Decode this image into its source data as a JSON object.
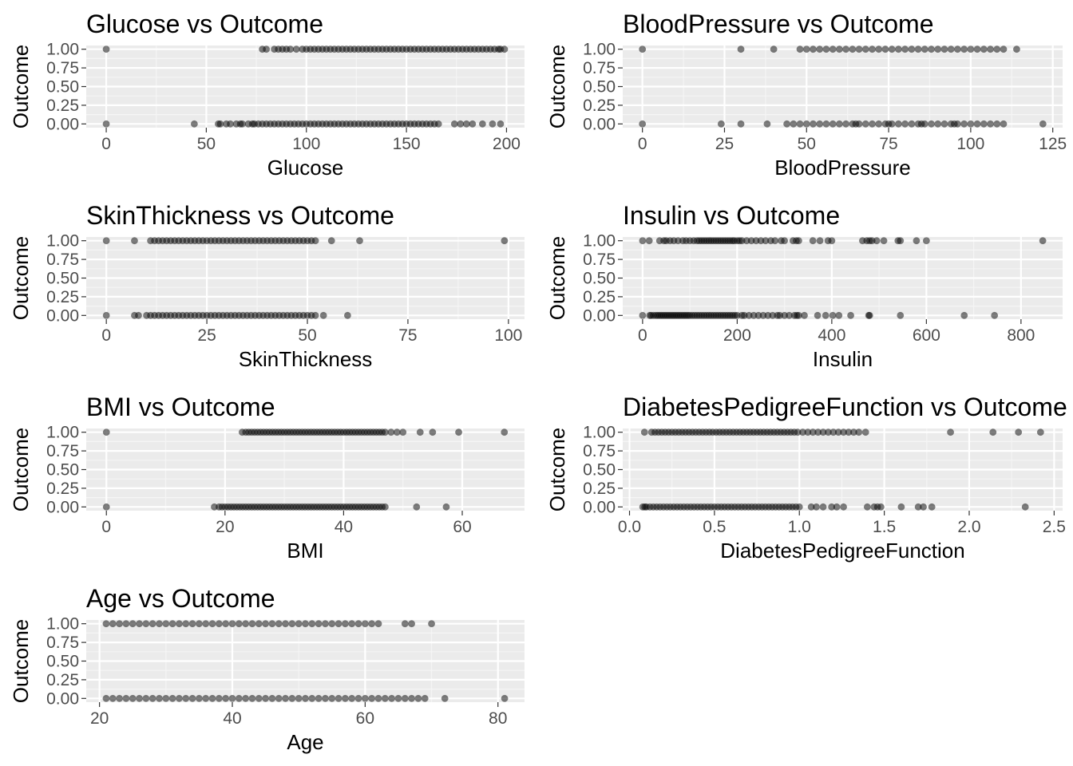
{
  "chart_data": [
    {
      "type": "scatter",
      "title": "Glucose vs Outcome",
      "xlabel": "Glucose",
      "ylabel": "Outcome",
      "xlim": [
        -10,
        209
      ],
      "ylim": [
        -0.05,
        1.05
      ],
      "xticks": [
        0,
        50,
        100,
        150,
        200
      ],
      "xtick_labels": [
        "0",
        "50",
        "100",
        "150",
        "200"
      ],
      "yticks": [
        0,
        0.25,
        0.5,
        0.75,
        1
      ],
      "ytick_labels": [
        "0.00",
        "0.25",
        "0.50",
        "0.75",
        "1.00"
      ],
      "grid": true,
      "series": [
        {
          "y": 1,
          "x": [
            0,
            78,
            80,
            84,
            86,
            88,
            90,
            92,
            95,
            98,
            100,
            102,
            104,
            106,
            108,
            110,
            112,
            114,
            116,
            118,
            120,
            122,
            124,
            126,
            128,
            130,
            132,
            134,
            136,
            138,
            140,
            142,
            144,
            146,
            148,
            150,
            152,
            154,
            156,
            158,
            160,
            162,
            164,
            166,
            168,
            170,
            172,
            174,
            176,
            178,
            180,
            182,
            184,
            186,
            188,
            190,
            192,
            194,
            196,
            197,
            199
          ]
        },
        {
          "y": 0,
          "x": [
            0,
            44,
            56,
            57,
            60,
            62,
            65,
            67,
            68,
            71,
            73,
            74,
            76,
            78,
            80,
            82,
            84,
            86,
            88,
            90,
            92,
            94,
            96,
            98,
            100,
            102,
            104,
            106,
            108,
            110,
            112,
            114,
            116,
            118,
            120,
            122,
            124,
            126,
            128,
            130,
            132,
            134,
            136,
            138,
            140,
            142,
            144,
            146,
            148,
            150,
            152,
            154,
            156,
            158,
            160,
            162,
            164,
            166,
            174,
            177,
            180,
            183,
            188,
            193,
            197
          ]
        }
      ]
    },
    {
      "type": "scatter",
      "title": "BloodPressure vs Outcome",
      "xlabel": "BloodPressure",
      "ylabel": "Outcome",
      "xlim": [
        -6,
        128
      ],
      "ylim": [
        -0.05,
        1.05
      ],
      "xticks": [
        0,
        25,
        50,
        75,
        100,
        125
      ],
      "xtick_labels": [
        "0",
        "25",
        "50",
        "75",
        "100",
        "125"
      ],
      "yticks": [
        0,
        0.25,
        0.5,
        0.75,
        1
      ],
      "ytick_labels": [
        "0.00",
        "0.25",
        "0.50",
        "0.75",
        "1.00"
      ],
      "grid": true,
      "series": [
        {
          "y": 1,
          "x": [
            0,
            30,
            40,
            48,
            50,
            52,
            54,
            56,
            58,
            60,
            62,
            64,
            66,
            68,
            70,
            72,
            74,
            76,
            78,
            80,
            82,
            84,
            86,
            88,
            90,
            92,
            94,
            96,
            98,
            100,
            102,
            104,
            106,
            108,
            110,
            114
          ]
        },
        {
          "y": 0,
          "x": [
            0,
            24,
            30,
            38,
            44,
            46,
            48,
            50,
            52,
            54,
            56,
            58,
            60,
            62,
            64,
            65,
            66,
            68,
            70,
            72,
            74,
            75,
            76,
            78,
            80,
            82,
            84,
            85,
            86,
            88,
            90,
            92,
            94,
            95,
            96,
            98,
            100,
            102,
            104,
            106,
            108,
            110,
            122
          ]
        }
      ]
    },
    {
      "type": "scatter",
      "title": "SkinThickness vs Outcome",
      "xlabel": "SkinThickness",
      "ylabel": "Outcome",
      "xlim": [
        -5,
        104
      ],
      "ylim": [
        -0.05,
        1.05
      ],
      "xticks": [
        0,
        25,
        50,
        75,
        100
      ],
      "xtick_labels": [
        "0",
        "25",
        "50",
        "75",
        "100"
      ],
      "yticks": [
        0,
        0.25,
        0.5,
        0.75,
        1
      ],
      "ytick_labels": [
        "0.00",
        "0.25",
        "0.50",
        "0.75",
        "1.00"
      ],
      "grid": true,
      "series": [
        {
          "y": 1,
          "x": [
            0,
            7,
            11,
            12,
            13,
            14,
            15,
            16,
            17,
            18,
            19,
            20,
            21,
            22,
            23,
            24,
            25,
            26,
            27,
            28,
            29,
            30,
            31,
            32,
            33,
            34,
            35,
            36,
            37,
            38,
            39,
            40,
            41,
            42,
            43,
            44,
            45,
            46,
            47,
            48,
            49,
            50,
            51,
            52,
            56,
            63,
            99
          ]
        },
        {
          "y": 0,
          "x": [
            0,
            7,
            8,
            10,
            11,
            12,
            13,
            14,
            15,
            16,
            17,
            18,
            19,
            20,
            21,
            22,
            23,
            24,
            25,
            26,
            27,
            28,
            29,
            30,
            31,
            32,
            33,
            34,
            35,
            36,
            37,
            38,
            39,
            40,
            41,
            42,
            43,
            44,
            45,
            46,
            47,
            48,
            49,
            50,
            51,
            52,
            54,
            60
          ]
        }
      ]
    },
    {
      "type": "scatter",
      "title": "Insulin vs Outcome",
      "xlabel": "Insulin",
      "ylabel": "Outcome",
      "xlim": [
        -42,
        888
      ],
      "ylim": [
        -0.05,
        1.05
      ],
      "xticks": [
        0,
        200,
        400,
        600,
        800
      ],
      "xtick_labels": [
        "0",
        "200",
        "400",
        "600",
        "800"
      ],
      "yticks": [
        0,
        0.25,
        0.5,
        0.75,
        1
      ],
      "ytick_labels": [
        "0.00",
        "0.25",
        "0.50",
        "0.75",
        "1.00"
      ],
      "grid": true,
      "series": [
        {
          "y": 1,
          "x": [
            0,
            14,
            36,
            45,
            50,
            58,
            66,
            75,
            85,
            92,
            100,
            108,
            115,
            120,
            125,
            130,
            135,
            140,
            145,
            150,
            155,
            160,
            165,
            170,
            175,
            180,
            185,
            190,
            194,
            200,
            205,
            210,
            220,
            230,
            240,
            250,
            260,
            271,
            280,
            293,
            300,
            318,
            325,
            330,
            360,
            375,
            392,
            400,
            465,
            474,
            480,
            485,
            495,
            510,
            540,
            545,
            579,
            600,
            846
          ]
        },
        {
          "y": 0,
          "x": [
            0,
            15,
            18,
            23,
            28,
            32,
            36,
            40,
            44,
            48,
            52,
            56,
            60,
            64,
            68,
            72,
            76,
            80,
            84,
            88,
            92,
            96,
            100,
            105,
            110,
            115,
            120,
            125,
            130,
            135,
            140,
            145,
            150,
            155,
            160,
            165,
            170,
            175,
            180,
            185,
            190,
            195,
            200,
            210,
            215,
            225,
            235,
            245,
            255,
            265,
            275,
            285,
            290,
            300,
            310,
            321,
            326,
            330,
            342,
            370,
            387,
            402,
            415,
            440,
            478,
            480,
            545,
            680,
            744
          ]
        }
      ]
    },
    {
      "type": "scatter",
      "title": "BMI vs Outcome",
      "xlabel": "BMI",
      "ylabel": "Outcome",
      "xlim": [
        -3.4,
        70.5
      ],
      "ylim": [
        -0.05,
        1.05
      ],
      "xticks": [
        0,
        20,
        40,
        60
      ],
      "xtick_labels": [
        "0",
        "20",
        "40",
        "60"
      ],
      "yticks": [
        0,
        0.25,
        0.5,
        0.75,
        1
      ],
      "ytick_labels": [
        "0.00",
        "0.25",
        "0.50",
        "0.75",
        "1.00"
      ],
      "grid": true,
      "series": [
        {
          "y": 1,
          "x": [
            0,
            22.9,
            23.5,
            24.0,
            24.5,
            25.0,
            25.5,
            26.0,
            26.5,
            27.0,
            27.5,
            28.0,
            28.5,
            29.0,
            29.5,
            30.0,
            30.5,
            31.0,
            31.5,
            32.0,
            32.5,
            33.0,
            33.5,
            34.0,
            34.5,
            35.0,
            35.5,
            36.0,
            36.5,
            37.0,
            37.5,
            38.0,
            38.5,
            39.0,
            39.5,
            40.0,
            40.5,
            41.0,
            41.5,
            42.0,
            42.5,
            43.0,
            43.5,
            44.0,
            44.5,
            45.0,
            45.5,
            46.0,
            46.5,
            47.0,
            48.0,
            49.0,
            50.0,
            52.9,
            55.0,
            59.4,
            67.1
          ]
        },
        {
          "y": 0,
          "x": [
            0,
            18.2,
            19.0,
            19.5,
            20.0,
            20.5,
            21.0,
            21.5,
            22.0,
            22.5,
            23.0,
            23.5,
            24.0,
            24.5,
            25.0,
            25.5,
            26.0,
            26.5,
            27.0,
            27.5,
            28.0,
            28.5,
            29.0,
            29.5,
            30.0,
            30.5,
            31.0,
            31.5,
            32.0,
            32.5,
            33.0,
            33.5,
            34.0,
            34.5,
            35.0,
            35.5,
            36.0,
            36.5,
            37.0,
            37.5,
            38.0,
            38.5,
            39.0,
            39.5,
            40.0,
            40.5,
            41.0,
            41.5,
            42.0,
            42.5,
            43.0,
            43.5,
            44.0,
            44.5,
            45.0,
            45.5,
            46.0,
            46.5,
            47.0,
            52.3,
            57.3
          ]
        }
      ]
    },
    {
      "type": "scatter",
      "title": "DiabetesPedigreeFunction vs Outcome",
      "xlabel": "DiabetesPedigreeFunction",
      "ylabel": "Outcome",
      "xlim": [
        -0.04,
        2.55
      ],
      "ylim": [
        -0.05,
        1.05
      ],
      "xticks": [
        0,
        0.5,
        1,
        1.5,
        2,
        2.5
      ],
      "xtick_labels": [
        "0.0",
        "0.5",
        "1.0",
        "1.5",
        "2.0",
        "2.5"
      ],
      "yticks": [
        0,
        0.25,
        0.5,
        0.75,
        1
      ],
      "ytick_labels": [
        "0.00",
        "0.25",
        "0.50",
        "0.75",
        "1.00"
      ],
      "grid": true,
      "series": [
        {
          "y": 1,
          "x": [
            0.088,
            0.13,
            0.15,
            0.17,
            0.19,
            0.21,
            0.23,
            0.25,
            0.27,
            0.29,
            0.31,
            0.33,
            0.35,
            0.37,
            0.39,
            0.41,
            0.43,
            0.45,
            0.47,
            0.49,
            0.51,
            0.53,
            0.55,
            0.57,
            0.59,
            0.61,
            0.63,
            0.65,
            0.67,
            0.69,
            0.71,
            0.73,
            0.75,
            0.77,
            0.79,
            0.81,
            0.83,
            0.85,
            0.87,
            0.89,
            0.91,
            0.93,
            0.95,
            0.97,
            0.99,
            1.02,
            1.05,
            1.08,
            1.11,
            1.14,
            1.17,
            1.2,
            1.23,
            1.26,
            1.29,
            1.32,
            1.35,
            1.39,
            1.89,
            2.14,
            2.29,
            2.42
          ]
        },
        {
          "y": 0,
          "x": [
            0.078,
            0.09,
            0.1,
            0.12,
            0.14,
            0.16,
            0.18,
            0.2,
            0.22,
            0.24,
            0.26,
            0.28,
            0.3,
            0.32,
            0.34,
            0.36,
            0.38,
            0.4,
            0.42,
            0.44,
            0.46,
            0.48,
            0.5,
            0.52,
            0.54,
            0.56,
            0.58,
            0.6,
            0.62,
            0.64,
            0.66,
            0.68,
            0.7,
            0.72,
            0.74,
            0.76,
            0.78,
            0.8,
            0.82,
            0.84,
            0.86,
            0.88,
            0.9,
            0.92,
            0.94,
            0.96,
            0.98,
            1.0,
            1.07,
            1.1,
            1.14,
            1.19,
            1.22,
            1.26,
            1.4,
            1.44,
            1.46,
            1.48,
            1.6,
            1.7,
            1.73,
            1.78,
            2.33
          ]
        }
      ]
    },
    {
      "type": "scatter",
      "title": "Age vs Outcome",
      "xlabel": "Age",
      "ylabel": "Outcome",
      "xlim": [
        18,
        84
      ],
      "ylim": [
        -0.05,
        1.05
      ],
      "xticks": [
        20,
        40,
        60,
        80
      ],
      "xtick_labels": [
        "20",
        "40",
        "60",
        "80"
      ],
      "yticks": [
        0,
        0.25,
        0.5,
        0.75,
        1
      ],
      "ytick_labels": [
        "0.00",
        "0.25",
        "0.50",
        "0.75",
        "1.00"
      ],
      "grid": true,
      "series": [
        {
          "y": 1,
          "x": [
            21,
            22,
            23,
            24,
            25,
            26,
            27,
            28,
            29,
            30,
            31,
            32,
            33,
            34,
            35,
            36,
            37,
            38,
            39,
            40,
            41,
            42,
            43,
            44,
            45,
            46,
            47,
            48,
            49,
            50,
            51,
            52,
            53,
            54,
            55,
            56,
            57,
            58,
            59,
            60,
            61,
            62,
            66,
            67,
            70
          ]
        },
        {
          "y": 0,
          "x": [
            21,
            22,
            23,
            24,
            25,
            26,
            27,
            28,
            29,
            30,
            31,
            32,
            33,
            34,
            35,
            36,
            37,
            38,
            39,
            40,
            41,
            42,
            43,
            44,
            45,
            46,
            47,
            48,
            49,
            50,
            51,
            52,
            53,
            54,
            55,
            56,
            57,
            58,
            59,
            60,
            61,
            62,
            63,
            64,
            65,
            66,
            67,
            68,
            69,
            72,
            81
          ]
        }
      ]
    }
  ]
}
